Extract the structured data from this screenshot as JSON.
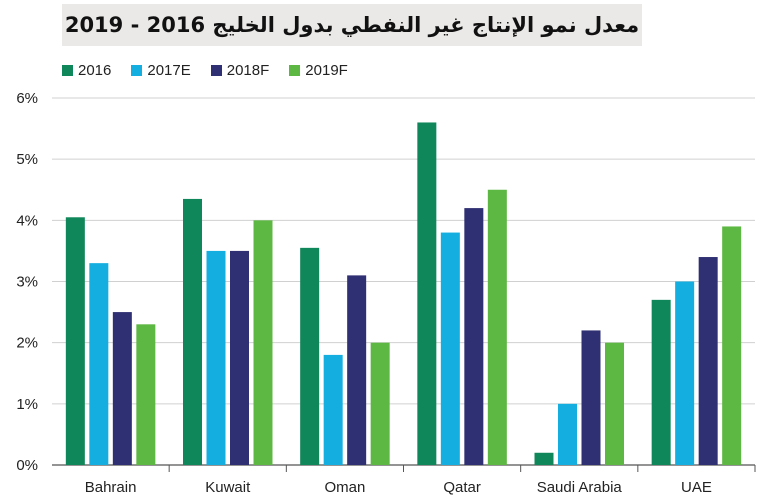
{
  "chart_data": {
    "type": "bar",
    "title": "معدل نمو الإنتاج غير النفطي بدول الخليج 2016 - 2019",
    "categories": [
      "Bahrain",
      "Kuwait",
      "Oman",
      "Qatar",
      "Saudi Arabia",
      "UAE"
    ],
    "series": [
      {
        "name": "2016",
        "color": "#10875a",
        "values": [
          4.05,
          4.35,
          3.55,
          5.6,
          0.2,
          2.7
        ]
      },
      {
        "name": "2017E",
        "color": "#14aee0",
        "values": [
          3.3,
          3.5,
          1.8,
          3.8,
          1.0,
          3.0
        ]
      },
      {
        "name": "2018F",
        "color": "#2f2f73",
        "values": [
          2.5,
          3.5,
          3.1,
          4.2,
          2.2,
          3.4
        ]
      },
      {
        "name": "2019F",
        "color": "#5db843",
        "values": [
          2.3,
          4.0,
          2.0,
          4.5,
          2.0,
          3.9
        ]
      }
    ],
    "yticks": [
      "0%",
      "1%",
      "2%",
      "3%",
      "4%",
      "5%",
      "6%"
    ],
    "ylim": [
      0,
      6
    ],
    "grid": true,
    "legend_position": "top-left"
  }
}
